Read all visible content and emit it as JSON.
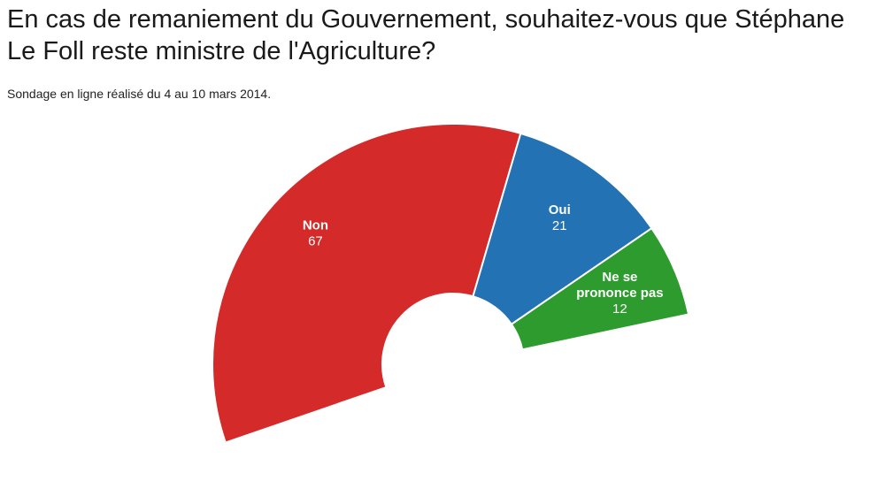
{
  "chart_data": {
    "type": "pie",
    "title": "En cas de remaniement du Gouvernement, souhaitez-vous que Stéphane Le Foll reste ministre de l'Agriculture?",
    "subtitle": "Sondage en ligne réalisé du 4 au 10 mars 2014.",
    "variant": "semi-donut",
    "slices": [
      {
        "label": "Non",
        "label_lines": [
          "Non"
        ],
        "value": 67,
        "display_value": "67",
        "color": "#d42a2a"
      },
      {
        "label": "Oui",
        "label_lines": [
          "Oui"
        ],
        "value": 21,
        "display_value": "21",
        "color": "#2272b4"
      },
      {
        "label": "Ne se prononce pas",
        "label_lines": [
          "Ne se",
          "prononce pas"
        ],
        "value": 12,
        "display_value": "12",
        "color": "#2e9b2e"
      }
    ]
  }
}
